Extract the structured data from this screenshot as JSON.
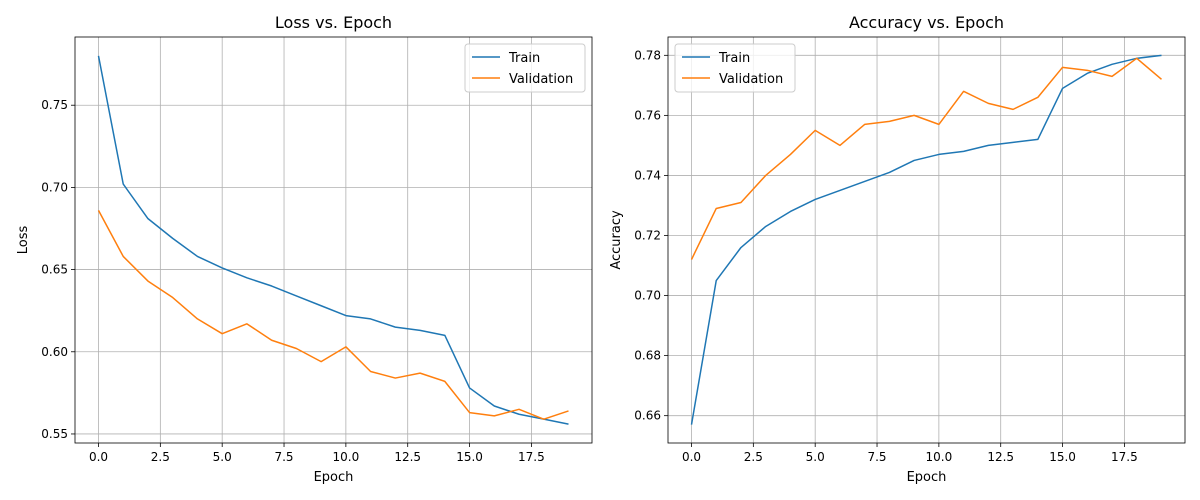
{
  "chart_data": [
    {
      "type": "line",
      "title": "Loss vs. Epoch",
      "xlabel": "Epoch",
      "ylabel": "Loss",
      "xlim": [
        -0.95,
        19.95
      ],
      "ylim": [
        0.5445,
        0.7915
      ],
      "xticks": [
        0.0,
        2.5,
        5.0,
        7.5,
        10.0,
        12.5,
        15.0,
        17.5
      ],
      "xtick_labels": [
        "0.0",
        "2.5",
        "5.0",
        "7.5",
        "10.0",
        "12.5",
        "15.0",
        "17.5"
      ],
      "yticks": [
        0.55,
        0.6,
        0.65,
        0.7,
        0.75
      ],
      "ytick_labels": [
        "0.55",
        "0.60",
        "0.65",
        "0.70",
        "0.75"
      ],
      "grid": true,
      "legend": "upper right",
      "x": [
        0,
        1,
        2,
        3,
        4,
        5,
        6,
        7,
        8,
        9,
        10,
        11,
        12,
        13,
        14,
        15,
        16,
        17,
        18,
        19
      ],
      "series": [
        {
          "name": "Train",
          "color": "#1f77b4",
          "values": [
            0.78,
            0.702,
            0.681,
            0.669,
            0.658,
            0.651,
            0.645,
            0.64,
            0.634,
            0.628,
            0.622,
            0.62,
            0.615,
            0.613,
            0.61,
            0.578,
            0.567,
            0.562,
            0.559,
            0.556
          ]
        },
        {
          "name": "Validation",
          "color": "#ff7f0e",
          "values": [
            0.686,
            0.658,
            0.643,
            0.633,
            0.62,
            0.611,
            0.617,
            0.607,
            0.602,
            0.594,
            0.603,
            0.588,
            0.584,
            0.587,
            0.582,
            0.563,
            0.561,
            0.565,
            0.559,
            0.564
          ]
        }
      ]
    },
    {
      "type": "line",
      "title": "Accuracy vs. Epoch",
      "xlabel": "Epoch",
      "ylabel": "Accuracy",
      "xlim": [
        -0.95,
        19.95
      ],
      "ylim": [
        0.6509,
        0.7861
      ],
      "xticks": [
        0.0,
        2.5,
        5.0,
        7.5,
        10.0,
        12.5,
        15.0,
        17.5
      ],
      "xtick_labels": [
        "0.0",
        "2.5",
        "5.0",
        "7.5",
        "10.0",
        "12.5",
        "15.0",
        "17.5"
      ],
      "yticks": [
        0.66,
        0.68,
        0.7,
        0.72,
        0.74,
        0.76,
        0.78
      ],
      "ytick_labels": [
        "0.66",
        "0.68",
        "0.70",
        "0.72",
        "0.74",
        "0.76",
        "0.78"
      ],
      "grid": true,
      "legend": "upper left",
      "x": [
        0,
        1,
        2,
        3,
        4,
        5,
        6,
        7,
        8,
        9,
        10,
        11,
        12,
        13,
        14,
        15,
        16,
        17,
        18,
        19
      ],
      "series": [
        {
          "name": "Train",
          "color": "#1f77b4",
          "values": [
            0.657,
            0.705,
            0.716,
            0.723,
            0.728,
            0.732,
            0.735,
            0.738,
            0.741,
            0.745,
            0.747,
            0.748,
            0.75,
            0.751,
            0.752,
            0.769,
            0.774,
            0.777,
            0.779,
            0.78
          ]
        },
        {
          "name": "Validation",
          "color": "#ff7f0e",
          "values": [
            0.712,
            0.729,
            0.731,
            0.74,
            0.747,
            0.755,
            0.75,
            0.757,
            0.758,
            0.76,
            0.757,
            0.768,
            0.764,
            0.762,
            0.766,
            0.776,
            0.775,
            0.773,
            0.779,
            0.772
          ]
        }
      ]
    }
  ]
}
